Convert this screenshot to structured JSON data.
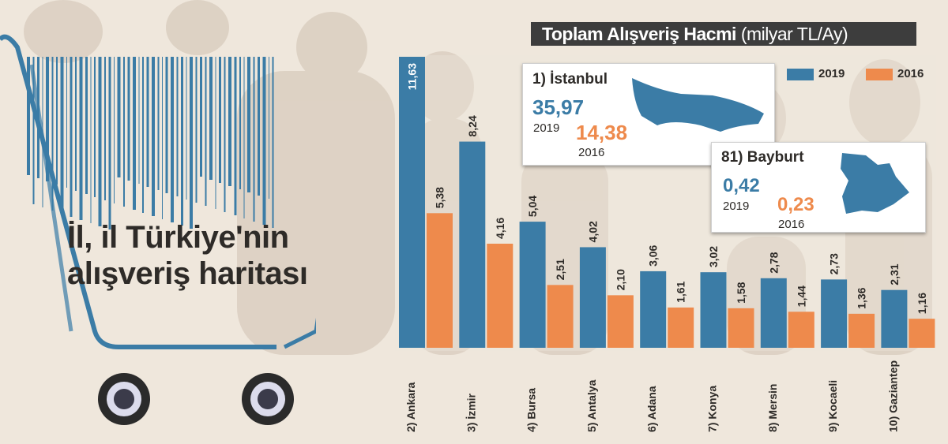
{
  "headline": {
    "line1": "İl, il Türkiye'nin",
    "line2": "alışveriş haritası"
  },
  "title": {
    "main": "Toplam Alışveriş Hacmi",
    "unit": "(milyar TL/Ay)"
  },
  "legend": [
    {
      "label": "2019",
      "color": "#3b7ca6"
    },
    {
      "label": "2016",
      "color": "#ee8a4c"
    }
  ],
  "callouts": {
    "istanbul": {
      "name": "1) İstanbul",
      "value_2019": "35,97",
      "year_2019": "2019",
      "value_2016": "14,38",
      "year_2016": "2016"
    },
    "bayburt": {
      "name": "81) Bayburt",
      "value_2019": "0,42",
      "year_2019": "2019",
      "value_2016": "0,23",
      "year_2016": "2016"
    }
  },
  "colors": {
    "series_2019": "#3b7ca6",
    "series_2016": "#ee8a4c",
    "background": "#efe7dc",
    "cart": "#3b7ca6"
  },
  "icons": [
    "barcode-icon",
    "shopping-cart-icon",
    "istanbul-map-icon",
    "bayburt-map-icon"
  ],
  "chart_data": {
    "type": "bar",
    "title": "Toplam Alışveriş Hacmi (milyar TL/Ay)",
    "categories": [
      "2) Ankara",
      "3) İzmir",
      "4) Bursa",
      "5) Antalya",
      "6) Adana",
      "7) Konya",
      "8) Mersin",
      "9) Kocaeli",
      "10) Gaziantep"
    ],
    "series": [
      {
        "name": "2019",
        "values": [
          11.63,
          8.24,
          5.04,
          4.02,
          3.06,
          3.02,
          2.78,
          2.73,
          2.31
        ],
        "labels": [
          "11,63",
          "8,24",
          "5,04",
          "4,02",
          "3,06",
          "3,02",
          "2,78",
          "2,73",
          "2,31"
        ]
      },
      {
        "name": "2016",
        "values": [
          5.38,
          4.16,
          2.51,
          2.1,
          1.61,
          1.58,
          1.44,
          1.36,
          1.16
        ],
        "labels": [
          "5,38",
          "4,16",
          "2,51",
          "2,10",
          "1,61",
          "1,58",
          "1,44",
          "1,36",
          "1,16"
        ]
      }
    ],
    "ylim": [
      0,
      11.63
    ],
    "grid": false,
    "legend_position": "top-right"
  }
}
